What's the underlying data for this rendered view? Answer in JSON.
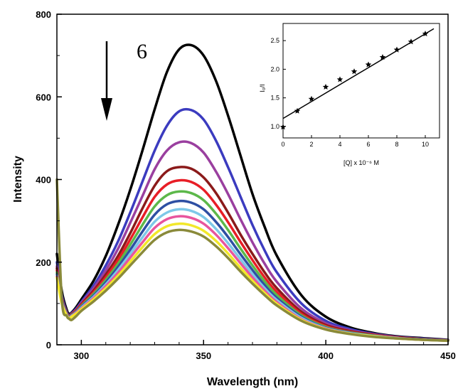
{
  "chart_data": [
    {
      "type": "line",
      "xlabel": "Wavelength (nm)",
      "ylabel": "Intensity",
      "xlim": [
        290,
        450
      ],
      "ylim": [
        0,
        800
      ],
      "xticks": [
        300,
        350,
        400,
        450
      ],
      "yticks": [
        0,
        200,
        400,
        600,
        800
      ],
      "grid": false,
      "annotation": "6",
      "arrow": "down",
      "series": [
        {
          "color": "#000000",
          "peak_x": 345,
          "x": [
            290,
            292,
            294,
            295,
            296,
            298,
            300,
            305,
            310,
            315,
            320,
            325,
            330,
            335,
            340,
            345,
            350,
            355,
            360,
            365,
            370,
            375,
            380,
            390,
            400,
            410,
            420,
            430,
            440,
            450
          ],
          "values": [
            220,
            130,
            85,
            75,
            78,
            92,
            110,
            155,
            215,
            290,
            375,
            470,
            570,
            660,
            715,
            725,
            700,
            640,
            555,
            460,
            365,
            285,
            215,
            120,
            68,
            42,
            28,
            20,
            16,
            12
          ]
        },
        {
          "color": "#3b3bbf",
          "peak_x": 344,
          "x": [
            290,
            292,
            294,
            295,
            296,
            298,
            300,
            305,
            310,
            315,
            320,
            325,
            330,
            335,
            340,
            345,
            350,
            355,
            360,
            365,
            370,
            375,
            380,
            390,
            400,
            410,
            420,
            430,
            440,
            450
          ],
          "values": [
            200,
            120,
            80,
            72,
            76,
            88,
            104,
            143,
            192,
            250,
            320,
            395,
            470,
            530,
            565,
            568,
            545,
            495,
            430,
            360,
            290,
            228,
            175,
            100,
            58,
            38,
            26,
            19,
            15,
            11
          ]
        },
        {
          "color": "#9a3f9f",
          "peak_x": 343,
          "x": [
            290,
            292,
            294,
            295,
            296,
            298,
            300,
            305,
            310,
            315,
            320,
            325,
            330,
            335,
            340,
            345,
            350,
            355,
            360,
            365,
            370,
            375,
            380,
            390,
            400,
            410,
            420,
            430,
            440,
            450
          ],
          "values": [
            190,
            115,
            78,
            71,
            75,
            86,
            101,
            137,
            180,
            232,
            295,
            360,
            425,
            470,
            490,
            488,
            465,
            420,
            365,
            305,
            248,
            196,
            152,
            88,
            52,
            35,
            25,
            18,
            14,
            11
          ]
        },
        {
          "color": "#8b1a1a",
          "peak_x": 342,
          "x": [
            290,
            292,
            294,
            295,
            296,
            298,
            300,
            305,
            310,
            315,
            320,
            325,
            330,
            335,
            340,
            345,
            350,
            355,
            360,
            365,
            370,
            375,
            380,
            390,
            400,
            410,
            420,
            430,
            440,
            450
          ],
          "values": [
            185,
            112,
            77,
            70,
            74,
            84,
            98,
            131,
            170,
            215,
            270,
            330,
            385,
            420,
            430,
            426,
            405,
            368,
            320,
            268,
            220,
            175,
            137,
            80,
            48,
            33,
            24,
            18,
            14,
            10
          ]
        },
        {
          "color": "#e81e26",
          "peak_x": 342,
          "x": [
            290,
            292,
            294,
            295,
            296,
            298,
            300,
            305,
            310,
            315,
            320,
            325,
            330,
            335,
            340,
            345,
            350,
            355,
            360,
            365,
            370,
            375,
            380,
            390,
            400,
            410,
            420,
            430,
            440,
            450
          ],
          "values": [
            180,
            110,
            76,
            69,
            73,
            83,
            96,
            127,
            163,
            205,
            255,
            308,
            358,
            388,
            398,
            394,
            375,
            340,
            297,
            250,
            205,
            163,
            128,
            75,
            45,
            31,
            23,
            17,
            13,
            10
          ]
        },
        {
          "color": "#5cb84a",
          "peak_x": 341,
          "x": [
            290,
            292,
            294,
            295,
            296,
            298,
            300,
            305,
            310,
            315,
            320,
            325,
            330,
            335,
            340,
            345,
            350,
            355,
            360,
            365,
            370,
            375,
            380,
            390,
            400,
            410,
            420,
            430,
            440,
            450
          ],
          "values": [
            175,
            108,
            75,
            68,
            72,
            81,
            94,
            123,
            157,
            196,
            242,
            290,
            335,
            362,
            371,
            367,
            350,
            318,
            278,
            234,
            192,
            153,
            120,
            71,
            43,
            30,
            22,
            16,
            13,
            10
          ]
        },
        {
          "color": "#2e4fa3",
          "peak_x": 341,
          "x": [
            290,
            292,
            294,
            295,
            296,
            298,
            300,
            305,
            310,
            315,
            320,
            325,
            330,
            335,
            340,
            345,
            350,
            355,
            360,
            365,
            370,
            375,
            380,
            390,
            400,
            410,
            420,
            430,
            440,
            450
          ],
          "values": [
            170,
            106,
            74,
            67,
            71,
            80,
            92,
            119,
            151,
            188,
            230,
            274,
            315,
            340,
            348,
            344,
            328,
            298,
            261,
            220,
            181,
            144,
            113,
            68,
            41,
            29,
            21,
            16,
            13,
            10
          ]
        },
        {
          "color": "#7ec8e8",
          "peak_x": 340,
          "x": [
            290,
            292,
            294,
            295,
            296,
            298,
            300,
            305,
            310,
            315,
            320,
            325,
            330,
            335,
            340,
            345,
            350,
            355,
            360,
            365,
            370,
            375,
            380,
            390,
            400,
            410,
            420,
            430,
            440,
            450
          ],
          "values": [
            168,
            104,
            73,
            66,
            70,
            79,
            90,
            116,
            146,
            181,
            220,
            260,
            298,
            320,
            328,
            324,
            309,
            281,
            246,
            208,
            171,
            137,
            108,
            65,
            40,
            28,
            21,
            16,
            12,
            10
          ]
        },
        {
          "color": "#e8559d",
          "peak_x": 340,
          "x": [
            290,
            292,
            294,
            295,
            296,
            298,
            300,
            305,
            310,
            315,
            320,
            325,
            330,
            335,
            340,
            345,
            350,
            355,
            360,
            365,
            370,
            375,
            380,
            390,
            400,
            410,
            420,
            430,
            440,
            450
          ],
          "values": [
            165,
            102,
            72,
            65,
            69,
            78,
            88,
            113,
            142,
            174,
            211,
            248,
            283,
            304,
            311,
            307,
            293,
            267,
            234,
            198,
            163,
            131,
            103,
            62,
            39,
            27,
            20,
            15,
            12,
            10
          ]
        },
        {
          "color": "#f2e82a",
          "peak_x": 340,
          "x": [
            290,
            292,
            294,
            295,
            296,
            298,
            300,
            305,
            310,
            315,
            320,
            325,
            330,
            335,
            340,
            345,
            350,
            355,
            360,
            365,
            370,
            375,
            380,
            390,
            400,
            410,
            420,
            430,
            440,
            450
          ],
          "values": [
            162,
            100,
            71,
            64,
            68,
            76,
            86,
            110,
            137,
            167,
            201,
            236,
            268,
            287,
            293,
            289,
            276,
            252,
            221,
            187,
            155,
            125,
            99,
            60,
            38,
            27,
            20,
            15,
            12,
            10
          ]
        },
        {
          "color": "#8a8a3a",
          "peak_x": 340,
          "x": [
            290,
            292,
            294,
            295,
            296,
            298,
            300,
            305,
            310,
            315,
            320,
            325,
            330,
            335,
            340,
            345,
            350,
            355,
            360,
            365,
            370,
            375,
            380,
            390,
            400,
            410,
            420,
            430,
            440,
            450
          ],
          "values": [
            400,
            110,
            70,
            63,
            60,
            70,
            82,
            105,
            131,
            160,
            192,
            224,
            254,
            272,
            278,
            274,
            262,
            239,
            210,
            178,
            148,
            120,
            95,
            58,
            37,
            26,
            19,
            15,
            12,
            10
          ]
        }
      ]
    },
    {
      "type": "scatter",
      "xlabel": "[Q] x 10⁻⁶ M",
      "ylabel": "I₀/I",
      "xlim": [
        0,
        11
      ],
      "ylim": [
        0.8,
        2.8
      ],
      "xticks": [
        0,
        2,
        4,
        6,
        8,
        10
      ],
      "yticks": [
        1.0,
        1.5,
        2.0,
        2.5
      ],
      "grid": false,
      "x": [
        0,
        1,
        2,
        3,
        4,
        5,
        6,
        7,
        8,
        9,
        10
      ],
      "values": [
        0.99,
        1.27,
        1.48,
        1.69,
        1.82,
        1.96,
        2.08,
        2.21,
        2.34,
        2.48,
        2.62
      ],
      "fit": {
        "slope": 0.148,
        "intercept": 1.14
      }
    }
  ]
}
